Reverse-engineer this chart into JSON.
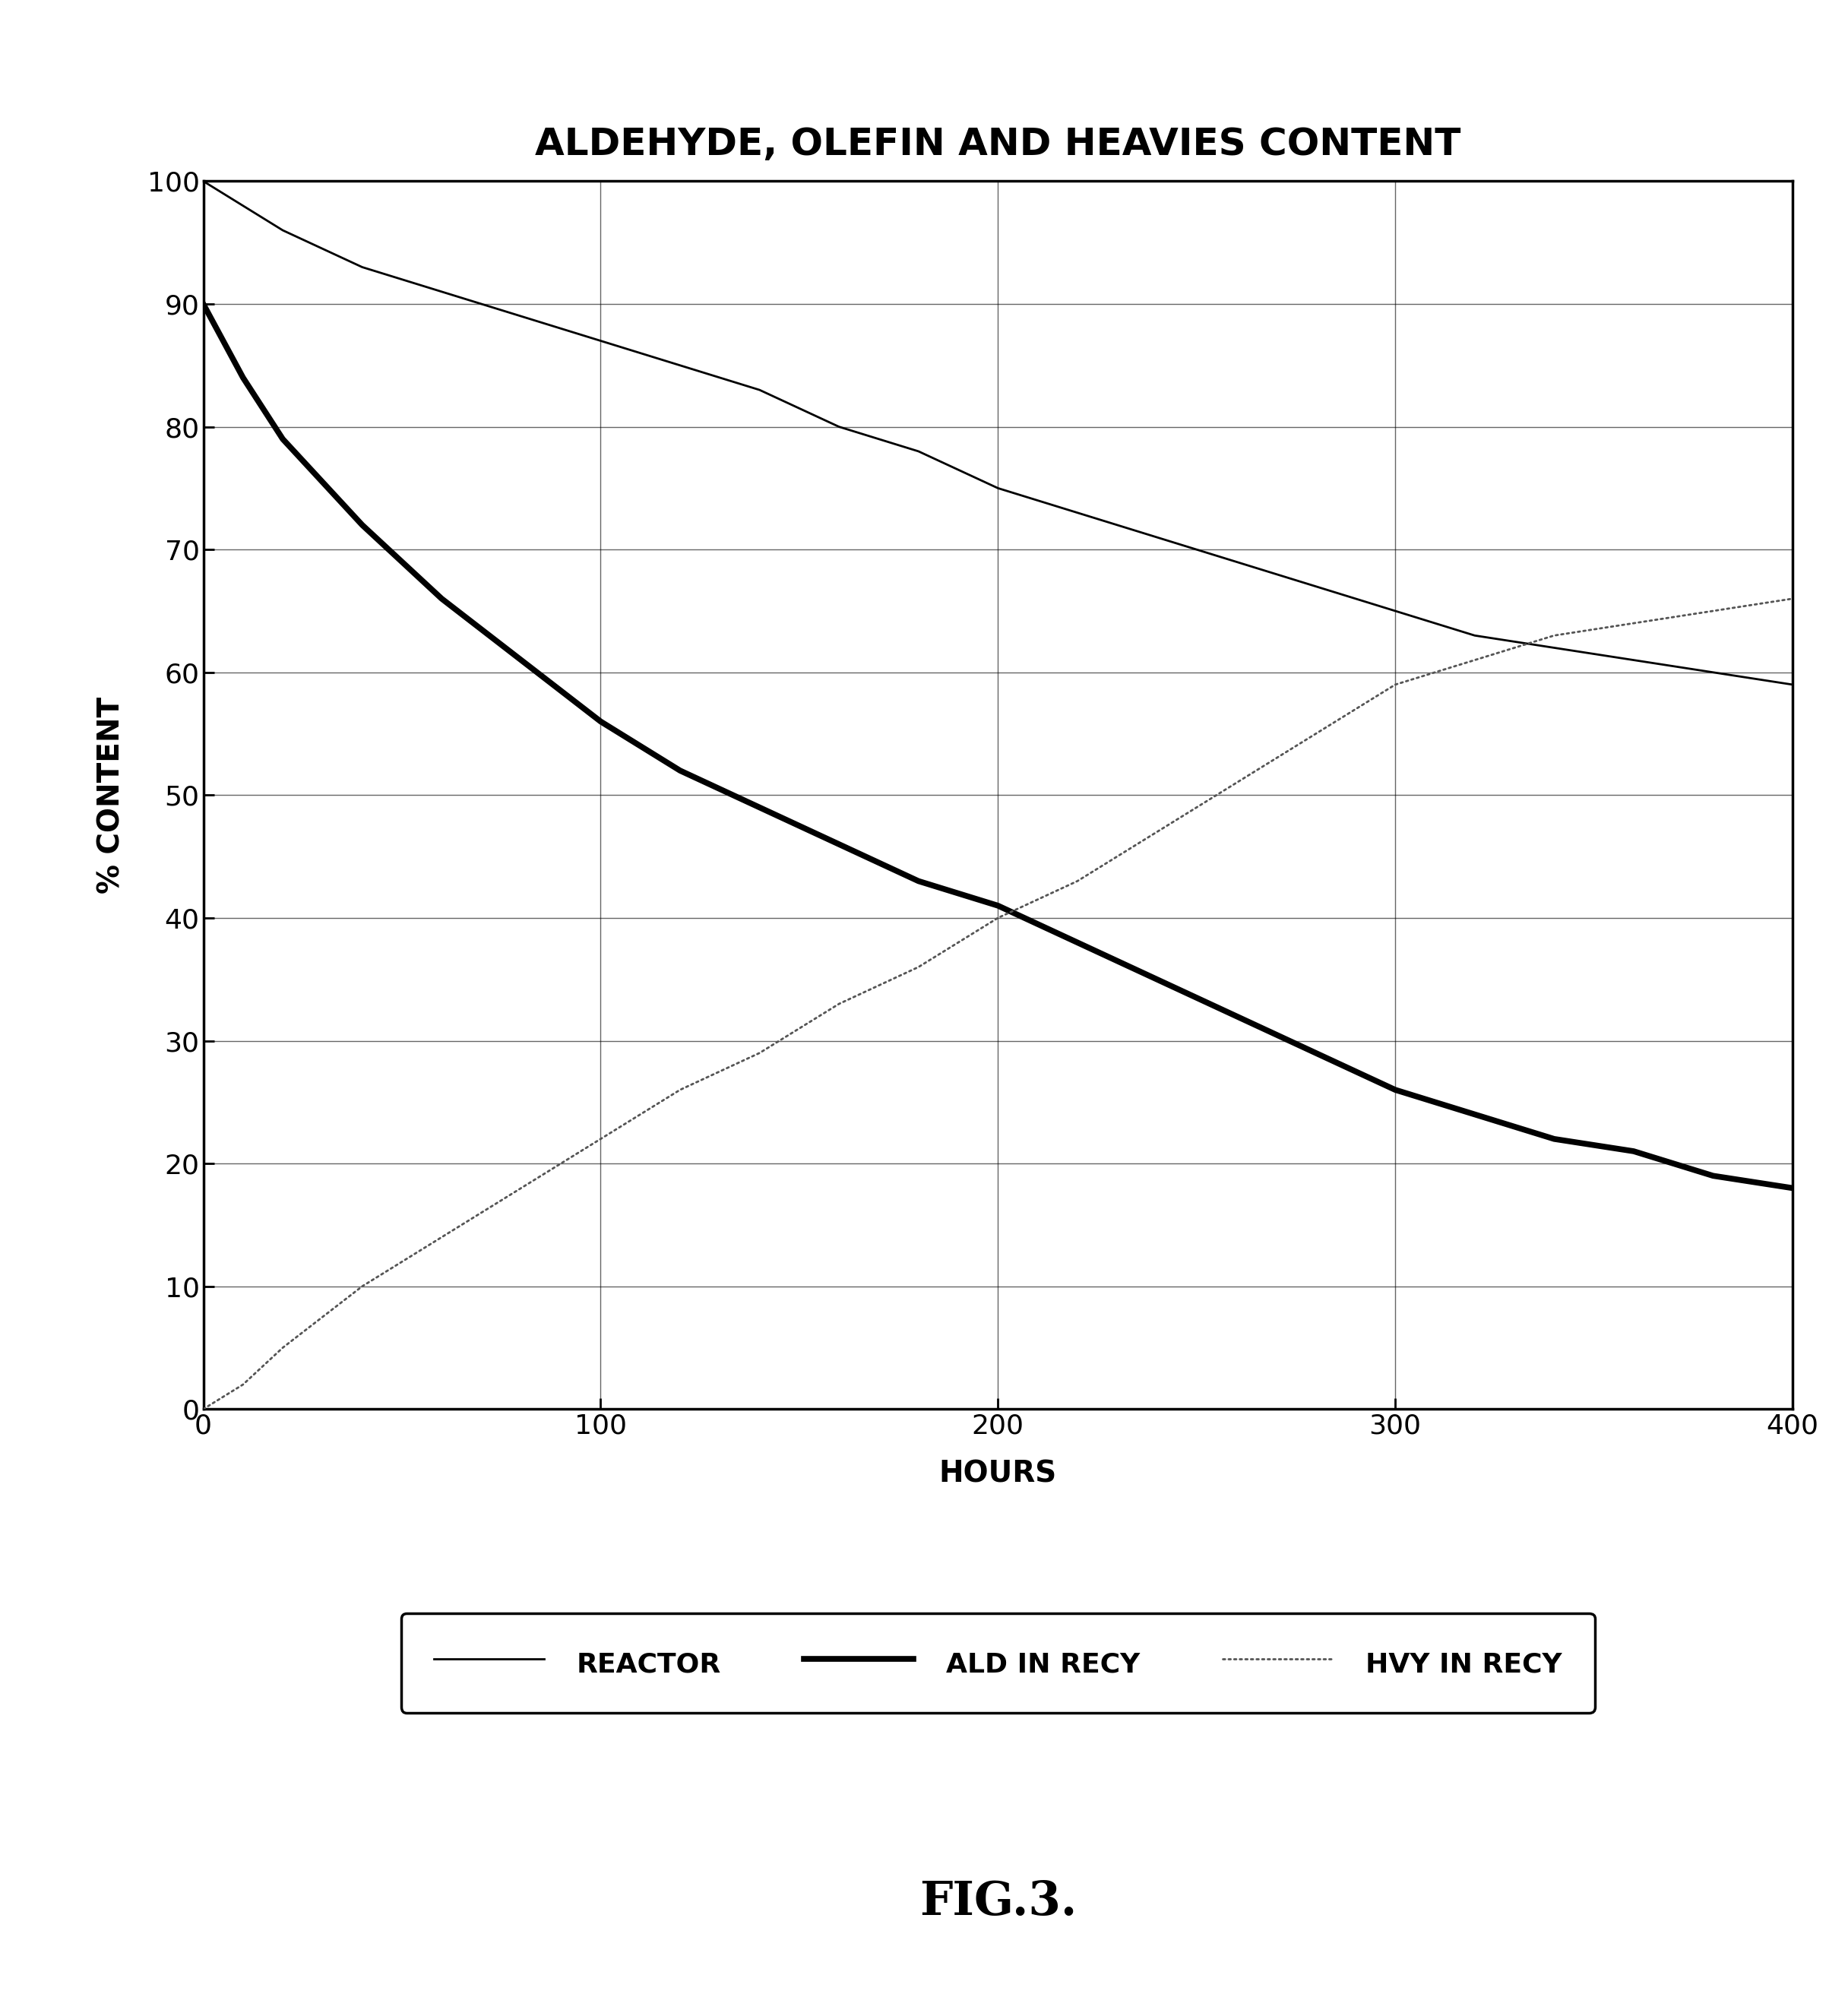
{
  "title": "ALDEHYDE, OLEFIN AND HEAVIES CONTENT",
  "xlabel": "HOURS",
  "ylabel": "% CONTENT",
  "xlim": [
    0,
    400
  ],
  "ylim": [
    0,
    100
  ],
  "xticks": [
    0,
    100,
    200,
    300,
    400
  ],
  "yticks": [
    0,
    10,
    20,
    30,
    40,
    50,
    60,
    70,
    80,
    90,
    100
  ],
  "fig_caption": "FIG.3.",
  "background_color": "#ffffff",
  "reactor_x": [
    0,
    5,
    10,
    20,
    40,
    60,
    80,
    100,
    120,
    140,
    160,
    180,
    200,
    220,
    240,
    260,
    280,
    300,
    320,
    340,
    360,
    380,
    400
  ],
  "reactor_y": [
    100,
    99,
    98,
    96,
    93,
    91,
    89,
    87,
    85,
    83,
    80,
    78,
    75,
    73,
    71,
    69,
    67,
    65,
    63,
    62,
    61,
    60,
    59
  ],
  "ald_recy_x": [
    0,
    5,
    10,
    20,
    40,
    60,
    80,
    100,
    120,
    140,
    160,
    180,
    200,
    220,
    240,
    260,
    280,
    300,
    320,
    340,
    360,
    380,
    400
  ],
  "ald_recy_y": [
    90,
    87,
    84,
    79,
    72,
    66,
    61,
    56,
    52,
    49,
    46,
    43,
    41,
    38,
    35,
    32,
    29,
    26,
    24,
    22,
    21,
    19,
    18
  ],
  "hvy_recy_x": [
    0,
    5,
    10,
    20,
    40,
    60,
    80,
    100,
    120,
    140,
    160,
    180,
    200,
    220,
    240,
    260,
    280,
    300,
    320,
    340,
    360,
    380,
    400
  ],
  "hvy_recy_y": [
    0,
    1,
    2,
    5,
    10,
    14,
    18,
    22,
    26,
    29,
    33,
    36,
    40,
    43,
    47,
    51,
    55,
    59,
    61,
    63,
    64,
    65,
    66
  ],
  "legend_labels": [
    "REACTOR",
    "ALD IN RECY",
    "HVY IN RECY"
  ],
  "title_fontsize": 36,
  "axis_label_fontsize": 28,
  "tick_fontsize": 26,
  "legend_fontsize": 26,
  "caption_fontsize": 44
}
